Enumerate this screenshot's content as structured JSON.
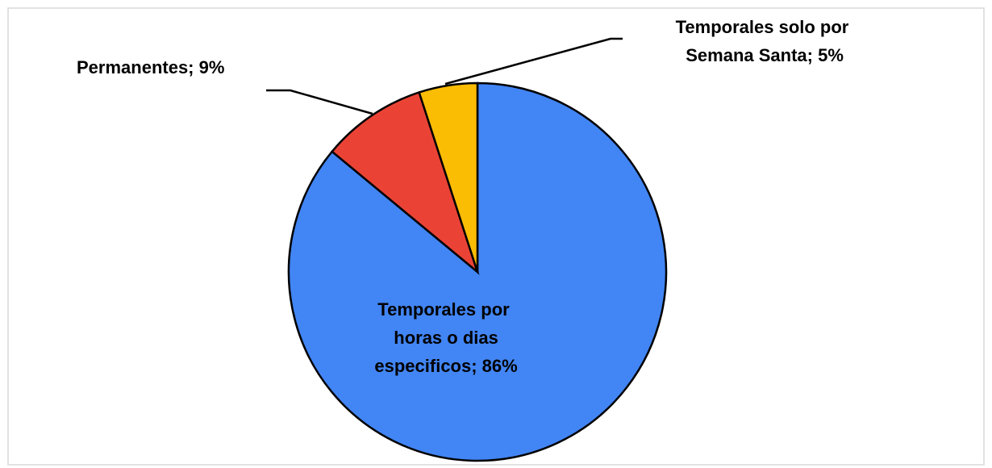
{
  "chart_data": {
    "type": "pie",
    "categories": [
      "Temporales por horas o dias especificos",
      "Permanentes",
      "Temporales solo por Semana Santa"
    ],
    "values": [
      86,
      9,
      5
    ],
    "value_labels": [
      "Temporales por horas o dias especificos; 86%",
      "Permanentes; 9%",
      "Temporales solo por Semana Santa; 5%"
    ],
    "colors": [
      "#4285f4",
      "#ea4335",
      "#fbbc04"
    ]
  }
}
